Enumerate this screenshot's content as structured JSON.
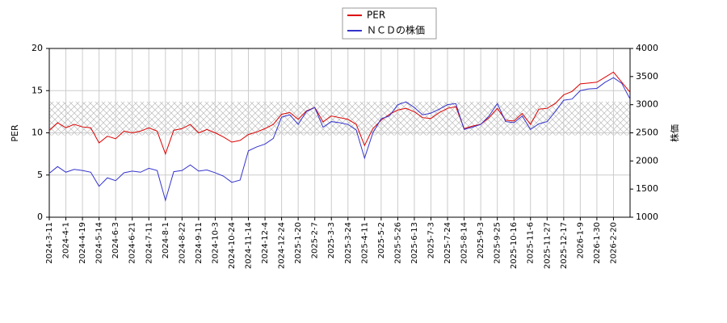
{
  "chart_data": {
    "type": "line",
    "categories": [
      "2024-3-11",
      null,
      "2024-4-1",
      null,
      "2024-4-19",
      null,
      "2024-5-14",
      null,
      "2024-6-3",
      null,
      "2024-6-21",
      null,
      "2024-7-11",
      null,
      "2024-8-1",
      null,
      "2024-8-22",
      null,
      "2024-9-11",
      null,
      "2024-10-3",
      null,
      "2024-10-24",
      null,
      "2024-11-14",
      null,
      "2024-12-4",
      null,
      "2024-12-24",
      null,
      "2025-1-20",
      null,
      "2025-2-7",
      null,
      "2025-3-3",
      null,
      "2025-3-24",
      null,
      "2025-4-11",
      null,
      "2025-5-2",
      null,
      "2025-5-26",
      null,
      "2025-6-13",
      null,
      "2025-7-3",
      null,
      "2025-7-24",
      null,
      "2025-8-14",
      null,
      "2025-9-3",
      null,
      "2025-9-25",
      null,
      "2025-10-16",
      null,
      "2025-11-6",
      null,
      "2025-11-27",
      null,
      "2025-12-17",
      null,
      "2026-1-9",
      null,
      "2026-1-30",
      null,
      "2026-2-20",
      null,
      null
    ],
    "series": [
      {
        "name": "PER",
        "color": "#dd0000",
        "axis": "y",
        "values": [
          10.3,
          11.2,
          10.6,
          11.0,
          10.7,
          10.6,
          8.8,
          9.6,
          9.3,
          10.2,
          10.0,
          10.2,
          10.6,
          10.2,
          7.5,
          10.3,
          10.5,
          11.0,
          10.0,
          10.4,
          10.0,
          9.5,
          8.9,
          9.1,
          9.8,
          10.1,
          10.5,
          11.0,
          12.2,
          12.4,
          11.6,
          12.6,
          13.0,
          11.3,
          12.0,
          11.8,
          11.6,
          11.0,
          8.5,
          10.5,
          11.5,
          12.2,
          12.7,
          12.9,
          12.5,
          11.8,
          11.7,
          12.4,
          12.9,
          13.1,
          10.5,
          10.8,
          11.0,
          11.8,
          12.9,
          11.5,
          11.4,
          12.3,
          11.0,
          12.8,
          12.9,
          13.5,
          14.5,
          14.9,
          15.8,
          15.9,
          16.0,
          16.6,
          17.2,
          16.0,
          14.8
        ]
      },
      {
        "name": "ＮＣＤの株価",
        "color": "#3333cc",
        "axis": "y2",
        "values": [
          1780,
          1900,
          1800,
          1850,
          1830,
          1800,
          1550,
          1700,
          1650,
          1790,
          1820,
          1800,
          1870,
          1830,
          1300,
          1810,
          1830,
          1930,
          1820,
          1840,
          1790,
          1730,
          1620,
          1660,
          2180,
          2250,
          2300,
          2400,
          2780,
          2820,
          2650,
          2880,
          2950,
          2600,
          2700,
          2680,
          2650,
          2550,
          2050,
          2500,
          2750,
          2800,
          3000,
          3050,
          2950,
          2820,
          2850,
          2920,
          3000,
          3020,
          2560,
          2600,
          2650,
          2800,
          3020,
          2700,
          2680,
          2800,
          2560,
          2660,
          2700,
          2880,
          3080,
          3100,
          3250,
          3280,
          3290,
          3400,
          3480,
          3380,
          3100
        ]
      }
    ],
    "ylabel": "PER",
    "y2label": "株価",
    "ylim": [
      0,
      20
    ],
    "yticks": [
      0,
      5,
      10,
      15,
      20
    ],
    "y2lim": [
      1000,
      4000
    ],
    "y2ticks": [
      1000,
      1500,
      2000,
      2500,
      3000,
      3500,
      4000
    ],
    "band": [
      9.7,
      13.7
    ],
    "grid": true
  }
}
